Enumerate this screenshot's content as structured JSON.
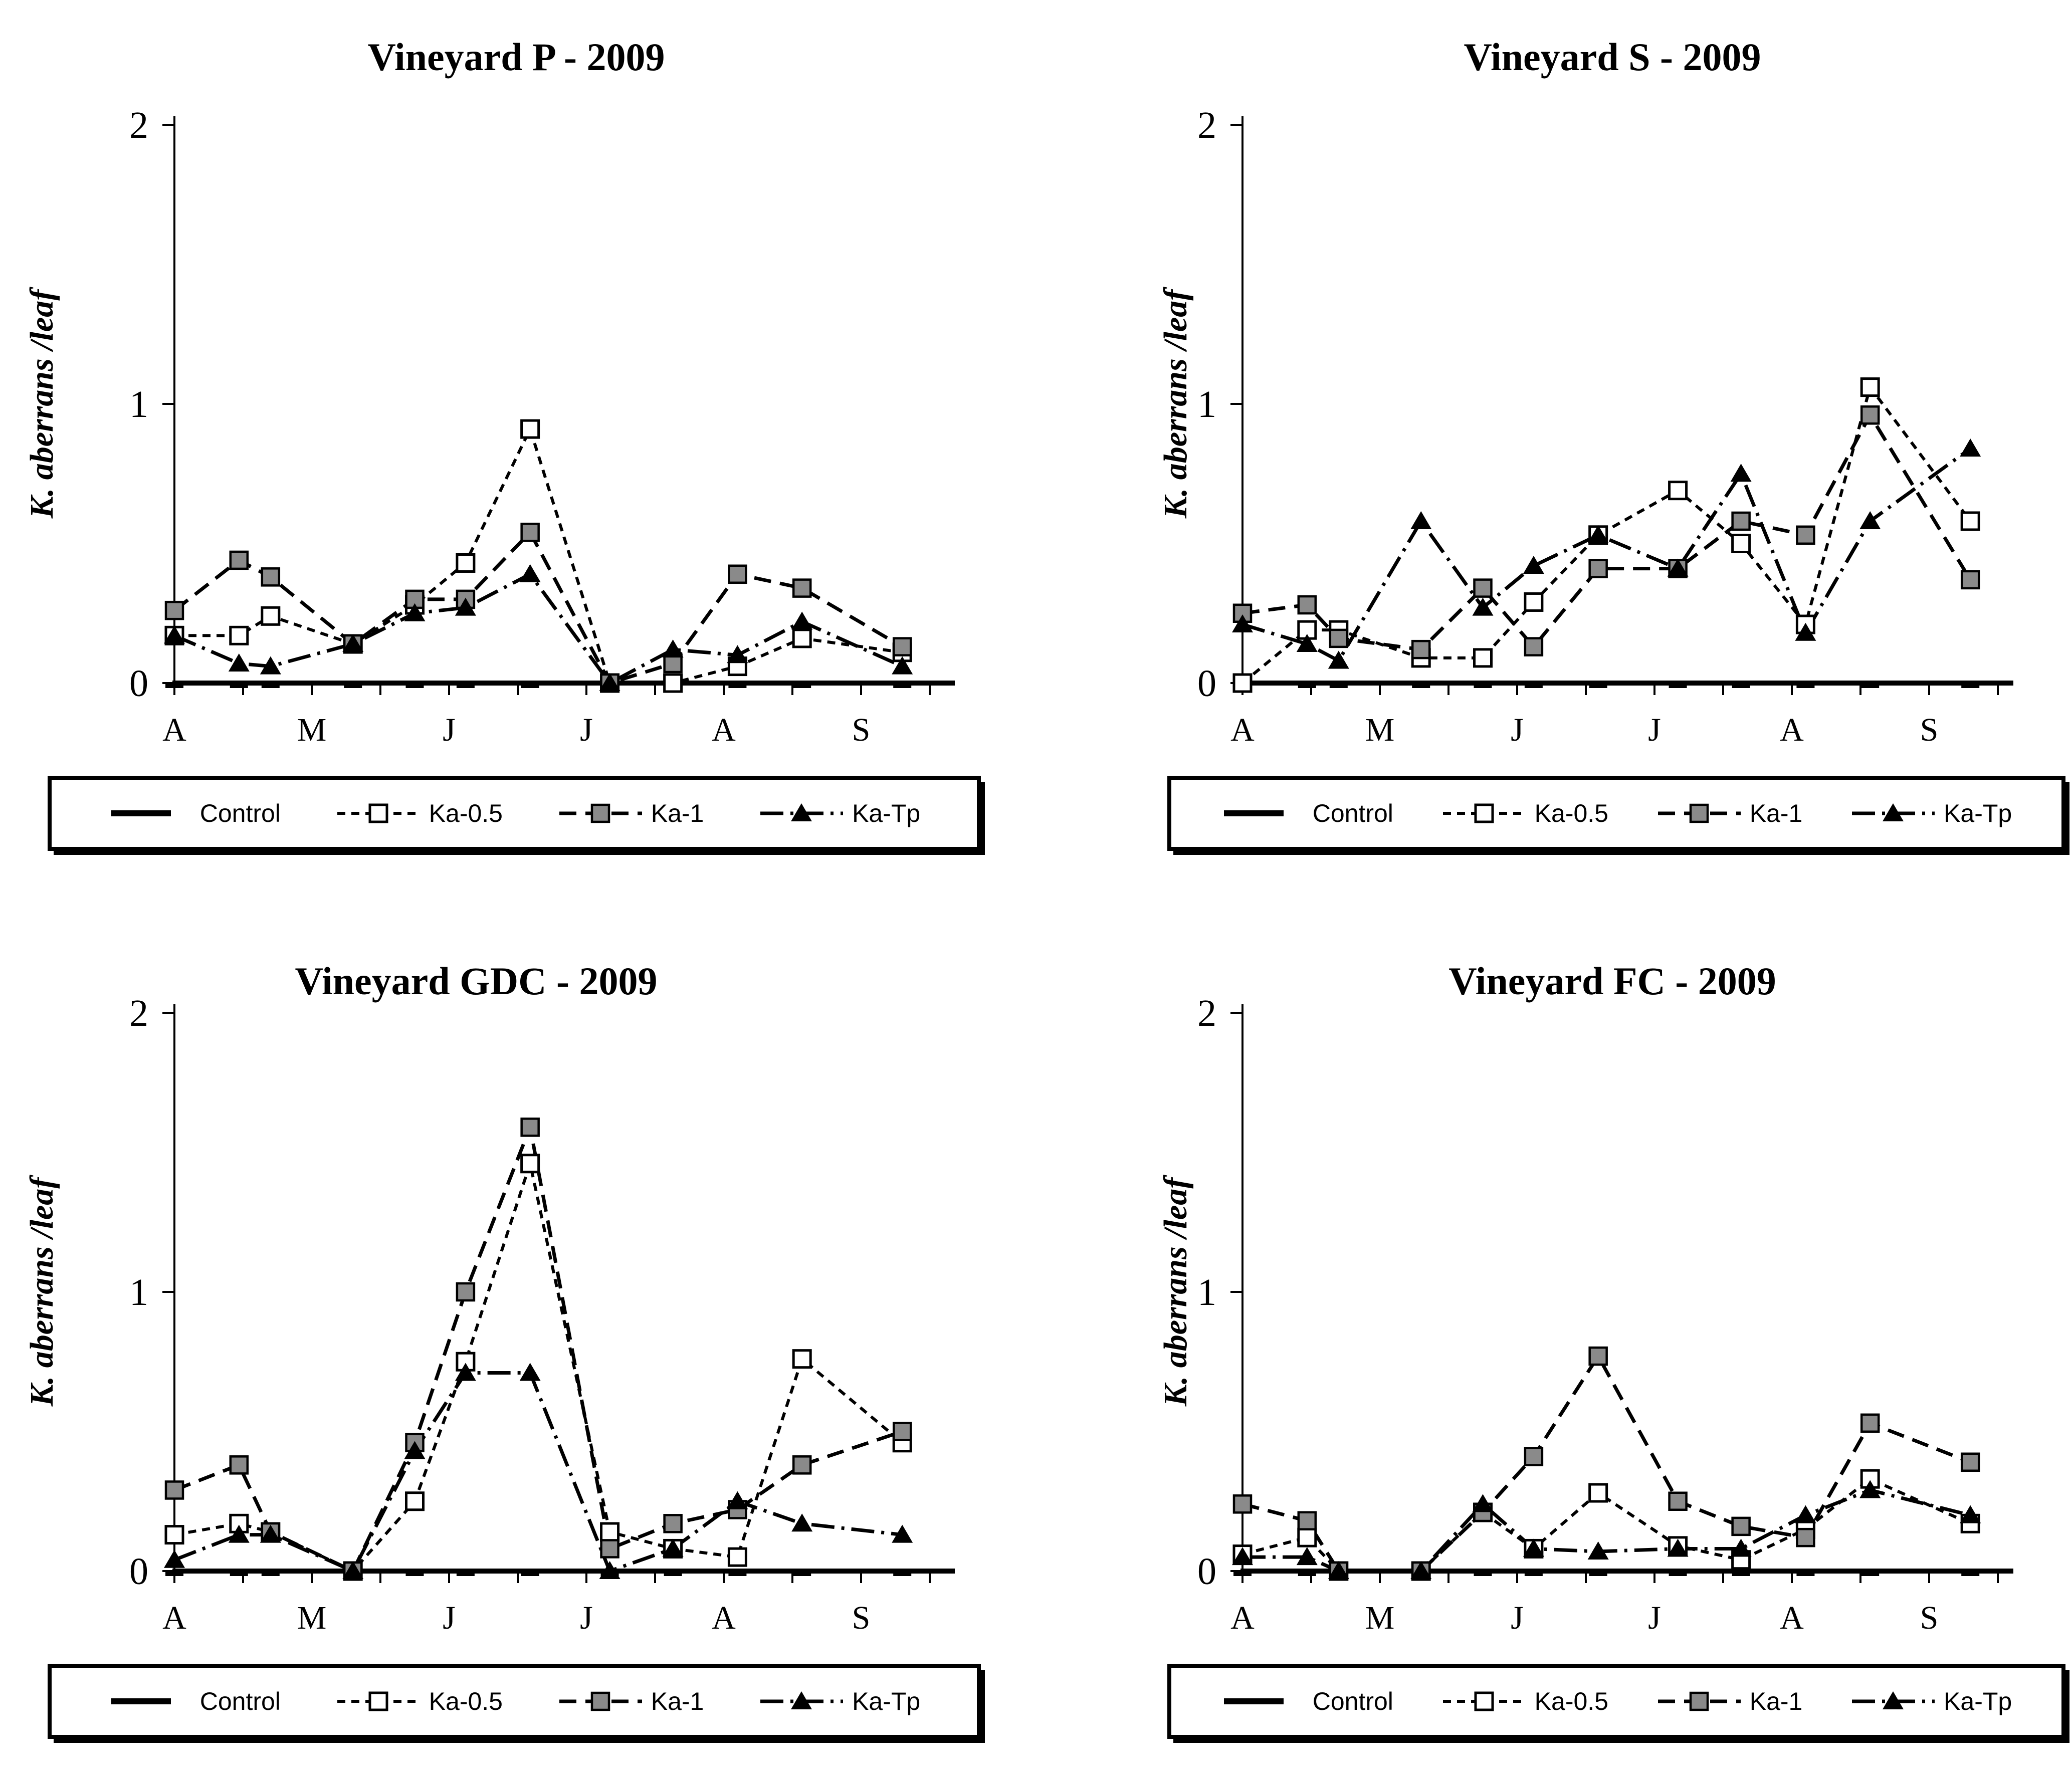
{
  "figure": {
    "background": "#ffffff",
    "description": "Four seasonal line charts of Kampimodromus aberrans per leaf in four vineyards, April to September 2009"
  },
  "colors": {
    "line": "#000000",
    "text": "#000000",
    "gray_marker_fill": "#8a8a8a",
    "white_marker_fill": "#ffffff",
    "background": "#ffffff"
  },
  "chart_data": [
    {
      "id": "vineyard-p",
      "type": "line",
      "title": "Vineyard P - 2009",
      "ylabel": "K. aberrans /leaf",
      "ylim": [
        0,
        2
      ],
      "yticks": [
        0,
        1,
        2
      ],
      "xtick_labels": [
        "A",
        "M",
        "J",
        "J",
        "A",
        "S"
      ],
      "x_months": [
        0,
        0.47,
        0.7,
        1.3,
        1.75,
        2.12,
        2.59,
        3.17,
        3.63,
        4.1,
        4.57,
        5.3
      ],
      "legend_position": "bottom",
      "grid": false,
      "series": [
        {
          "name": "Control",
          "marker": "dash",
          "linestyle": "solid",
          "values": [
            0,
            0,
            0,
            0,
            0,
            0,
            0,
            0,
            0,
            0,
            0,
            0
          ]
        },
        {
          "name": "Ka-0.5",
          "marker": "open-square",
          "linestyle": "dashed",
          "values": [
            0.17,
            0.17,
            0.24,
            0.14,
            0.28,
            0.43,
            0.91,
            0,
            0,
            0.06,
            0.16,
            0.11
          ]
        },
        {
          "name": "Ka-1",
          "marker": "gray-square",
          "linestyle": "long-dash",
          "values": [
            0.26,
            0.44,
            0.38,
            0.14,
            0.3,
            0.3,
            0.54,
            0,
            0.07,
            0.39,
            0.34,
            0.13
          ]
        },
        {
          "name": "Ka-Tp",
          "marker": "black-triangle",
          "linestyle": "dash-dot",
          "values": [
            0.17,
            0.07,
            0.06,
            0.14,
            0.25,
            0.27,
            0.39,
            0,
            0.12,
            0.1,
            0.22,
            0.06
          ]
        }
      ]
    },
    {
      "id": "vineyard-s",
      "type": "line",
      "title": "Vineyard S - 2009",
      "ylabel": "K. aberrans /leaf",
      "ylim": [
        0,
        2
      ],
      "yticks": [
        0,
        1,
        2
      ],
      "xtick_labels": [
        "A",
        "M",
        "J",
        "J",
        "A",
        "S"
      ],
      "x_months": [
        0,
        0.47,
        0.7,
        1.3,
        1.75,
        2.12,
        2.59,
        3.17,
        3.63,
        4.1,
        4.57,
        5.3
      ],
      "legend_position": "bottom",
      "grid": false,
      "series": [
        {
          "name": "Control",
          "marker": "dash",
          "linestyle": "solid",
          "values": [
            0,
            0,
            0,
            0,
            0,
            0,
            0,
            0,
            0,
            0,
            0,
            0
          ]
        },
        {
          "name": "Ka-0.5",
          "marker": "open-square",
          "linestyle": "dashed",
          "values": [
            0,
            0.19,
            0.19,
            0.09,
            0.09,
            0.29,
            0.53,
            0.69,
            0.5,
            0.21,
            1.06,
            0.58
          ]
        },
        {
          "name": "Ka-1",
          "marker": "gray-square",
          "linestyle": "long-dash",
          "values": [
            0.25,
            0.28,
            0.16,
            0.12,
            0.34,
            0.13,
            0.41,
            0.41,
            0.58,
            0.53,
            0.96,
            0.37
          ]
        },
        {
          "name": "Ka-Tp",
          "marker": "black-triangle",
          "linestyle": "dash-dot",
          "values": [
            0.21,
            0.14,
            0.08,
            0.58,
            0.27,
            0.42,
            0.53,
            0.41,
            0.75,
            0.18,
            0.58,
            0.84
          ]
        }
      ]
    },
    {
      "id": "vineyard-gdc",
      "type": "line",
      "title": "Vineyard GDC - 2009",
      "ylabel": "K. aberrans /leaf",
      "ylim": [
        0,
        2
      ],
      "yticks": [
        0,
        1,
        2
      ],
      "xtick_labels": [
        "A",
        "M",
        "J",
        "J",
        "A",
        "S"
      ],
      "x_months": [
        0,
        0.47,
        0.7,
        1.3,
        1.75,
        2.12,
        2.59,
        3.17,
        3.63,
        4.1,
        4.57,
        5.3
      ],
      "legend_position": "bottom",
      "grid": false,
      "series": [
        {
          "name": "Control",
          "marker": "dash",
          "linestyle": "solid",
          "values": [
            0,
            0,
            0,
            0,
            0,
            0,
            0,
            0,
            0,
            0,
            0,
            0
          ]
        },
        {
          "name": "Ka-0.5",
          "marker": "open-square",
          "linestyle": "dashed",
          "values": [
            0.13,
            0.17,
            0.14,
            0,
            0.25,
            0.75,
            1.46,
            0.14,
            0.08,
            0.05,
            0.76,
            0.46
          ]
        },
        {
          "name": "Ka-1",
          "marker": "gray-square",
          "linestyle": "long-dash",
          "values": [
            0.29,
            0.38,
            0.14,
            0,
            0.46,
            1.0,
            1.59,
            0.08,
            0.17,
            0.22,
            0.38,
            0.5
          ]
        },
        {
          "name": "Ka-Tp",
          "marker": "black-triangle",
          "linestyle": "dash-dot",
          "values": [
            0.04,
            0.13,
            0.13,
            0,
            0.43,
            0.71,
            0.71,
            0,
            0.08,
            0.25,
            0.17,
            0.13
          ]
        }
      ]
    },
    {
      "id": "vineyard-fc",
      "type": "line",
      "title": "Vineyard FC - 2009",
      "ylabel": "K. aberrans /leaf",
      "ylim": [
        0,
        2
      ],
      "yticks": [
        0,
        1,
        2
      ],
      "xtick_labels": [
        "A",
        "M",
        "J",
        "J",
        "A",
        "S"
      ],
      "x_months": [
        0,
        0.47,
        0.7,
        1.3,
        1.75,
        2.12,
        2.59,
        3.17,
        3.63,
        4.1,
        4.57,
        5.3
      ],
      "legend_position": "bottom",
      "grid": false,
      "series": [
        {
          "name": "Control",
          "marker": "dash",
          "linestyle": "solid",
          "values": [
            0,
            0,
            0,
            0,
            0,
            0,
            0,
            0,
            0,
            0,
            0,
            0
          ]
        },
        {
          "name": "Ka-0.5",
          "marker": "open-square",
          "linestyle": "dashed",
          "values": [
            0.06,
            0.12,
            0,
            0,
            0.21,
            0.08,
            0.28,
            0.09,
            0.04,
            0.15,
            0.33,
            0.17
          ]
        },
        {
          "name": "Ka-1",
          "marker": "gray-square",
          "linestyle": "long-dash",
          "values": [
            0.24,
            0.18,
            0,
            0,
            0.21,
            0.41,
            0.77,
            0.25,
            0.16,
            0.12,
            0.53,
            0.39
          ]
        },
        {
          "name": "Ka-Tp",
          "marker": "black-triangle",
          "linestyle": "dash-dot",
          "values": [
            0.05,
            0.05,
            0,
            0,
            0.24,
            0.08,
            0.07,
            0.08,
            0.08,
            0.2,
            0.29,
            0.2
          ]
        }
      ]
    }
  ]
}
